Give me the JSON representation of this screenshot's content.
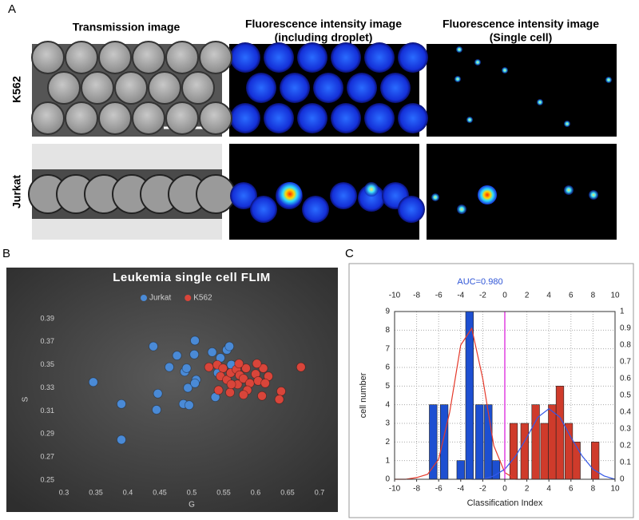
{
  "figure": {
    "panel_labels": [
      "A",
      "B",
      "C"
    ],
    "column_headers": [
      [
        "Transmission image"
      ],
      [
        "Fluorescence intensity image",
        "(including droplet)"
      ],
      [
        "Fluorescence intensity image",
        "(Single cell)"
      ]
    ],
    "row_labels": [
      "K562",
      "Jurkat"
    ]
  },
  "chart_data": [
    {
      "type": "scatter",
      "title": "Leukemia single cell FLIM",
      "xlabel": "G",
      "ylabel": "S",
      "xlim": [
        0.3,
        0.7
      ],
      "xticks": [
        0.3,
        0.35,
        0.4,
        0.45,
        0.5,
        0.55,
        0.6,
        0.65,
        0.7
      ],
      "ylim": [
        0.25,
        0.39
      ],
      "yticks": [
        0.25,
        0.27,
        0.29,
        0.31,
        0.33,
        0.35,
        0.37,
        0.39
      ],
      "grid": false,
      "legend": "top",
      "series": [
        {
          "name": "Jurkat",
          "color": "#4a8ad6",
          "x": [
            0.346,
            0.39,
            0.39,
            0.44,
            0.447,
            0.445,
            0.465,
            0.477,
            0.489,
            0.492,
            0.487,
            0.494,
            0.496,
            0.505,
            0.504,
            0.507,
            0.505,
            0.532,
            0.537,
            0.545,
            0.555,
            0.559,
            0.562,
            0.541
          ],
          "values": [
            0.335,
            0.316,
            0.285,
            0.366,
            0.325,
            0.311,
            0.348,
            0.358,
            0.344,
            0.347,
            0.316,
            0.33,
            0.315,
            0.371,
            0.359,
            0.337,
            0.334,
            0.361,
            0.322,
            0.356,
            0.363,
            0.366,
            0.35,
            0.343
          ]
        },
        {
          "name": "K562",
          "color": "#d9453a",
          "x": [
            0.527,
            0.54,
            0.549,
            0.545,
            0.555,
            0.561,
            0.57,
            0.575,
            0.572,
            0.581,
            0.585,
            0.591,
            0.587,
            0.56,
            0.542,
            0.6,
            0.604,
            0.612,
            0.62,
            0.615,
            0.61,
            0.602,
            0.574,
            0.581,
            0.562,
            0.64,
            0.637,
            0.671
          ],
          "values": [
            0.348,
            0.35,
            0.347,
            0.34,
            0.337,
            0.343,
            0.346,
            0.341,
            0.333,
            0.338,
            0.347,
            0.334,
            0.328,
            0.326,
            0.328,
            0.342,
            0.336,
            0.347,
            0.34,
            0.334,
            0.323,
            0.351,
            0.351,
            0.324,
            0.333,
            0.327,
            0.32,
            0.348
          ]
        }
      ]
    },
    {
      "type": "bar",
      "title": "AUC=0.980",
      "xlabel": "Classification Index",
      "ylabel": "cell number",
      "xlim": [
        -10,
        10
      ],
      "xticks": [
        -10,
        -8,
        -6,
        -4,
        -2,
        0,
        2,
        4,
        6,
        8,
        10
      ],
      "ylim": [
        0,
        9
      ],
      "yticks": [
        0,
        1,
        2,
        3,
        4,
        5,
        6,
        7,
        8,
        9
      ],
      "y2lim": [
        0,
        1
      ],
      "y2ticks": [
        0,
        0.1,
        0.2,
        0.3,
        0.4,
        0.5,
        0.6,
        0.7,
        0.8,
        0.9,
        1
      ],
      "grid": true,
      "threshold": 0,
      "series": [
        {
          "color": "#1d4fd1",
          "x": [
            -6.5,
            -5.5,
            -4,
            -3.2,
            -2.3,
            -1.5,
            -0.8
          ],
          "values": [
            4,
            4,
            1,
            9,
            4,
            4,
            1
          ]
        },
        {
          "color": "#cf3b2b",
          "x": [
            0.8,
            1.8,
            2.8,
            3.6,
            4.3,
            5,
            5.8,
            6.5,
            8.2
          ],
          "values": [
            3,
            3,
            4,
            3,
            4,
            5,
            3,
            2,
            2
          ]
        },
        {
          "type": "line",
          "axis": "y2",
          "color": "#e5392a",
          "x": [
            -10,
            -9,
            -8,
            -7,
            -6,
            -5,
            -4,
            -3,
            -2,
            -1,
            0,
            1,
            2
          ],
          "values": [
            0,
            0,
            0.01,
            0.03,
            0.12,
            0.4,
            0.8,
            0.9,
            0.6,
            0.2,
            0.04,
            0,
            0
          ]
        },
        {
          "type": "line",
          "axis": "y2",
          "color": "#3558e6",
          "x": [
            -3,
            -2,
            -1,
            0,
            1,
            2,
            3,
            4,
            5,
            6,
            7,
            8,
            9,
            10
          ],
          "values": [
            0,
            0,
            0.02,
            0.06,
            0.14,
            0.25,
            0.37,
            0.42,
            0.37,
            0.25,
            0.14,
            0.06,
            0.02,
            0
          ]
        }
      ]
    }
  ]
}
